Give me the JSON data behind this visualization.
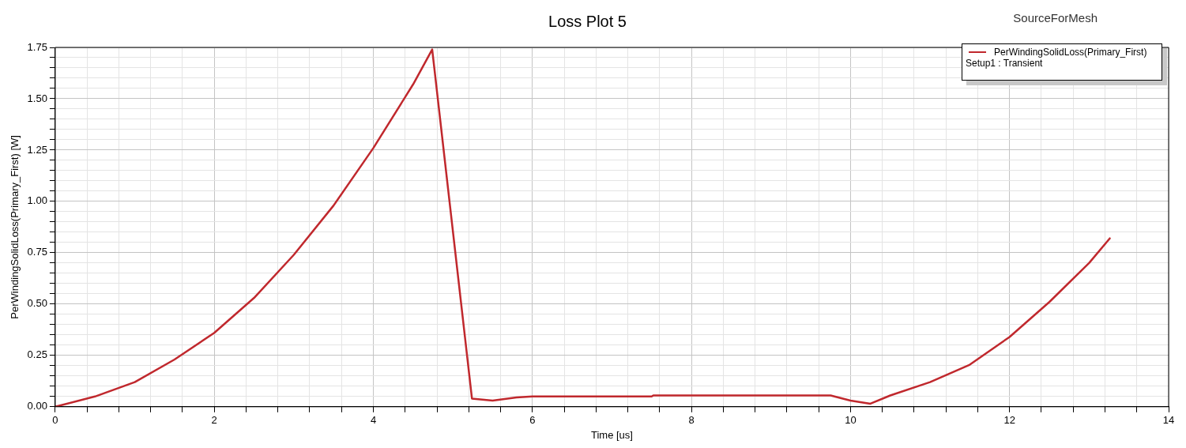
{
  "chart_data": {
    "type": "line",
    "title": "Loss Plot 5",
    "xlabel": "Time [us]",
    "ylabel": "PerWindingSolidLoss(Primary_First) [W]",
    "legend_title": "Setup1 : Transient",
    "annotations": [
      "SourceForMesh"
    ],
    "xlim": [
      0,
      14
    ],
    "ylim": [
      0,
      1.75
    ],
    "xticks": [
      0,
      {
        "value": 0.4,
        "label": null
      },
      {
        "value": 0.8,
        "label": null
      },
      {
        "value": 1.2,
        "label": null
      },
      {
        "value": 1.6,
        "label": null
      },
      2,
      {
        "value": 2.4,
        "label": null
      },
      {
        "value": 2.8,
        "label": null
      },
      {
        "value": 3.2,
        "label": null
      },
      {
        "value": 3.6,
        "label": null
      },
      4,
      {
        "value": 4.4,
        "label": null
      },
      {
        "value": 4.8,
        "label": null
      },
      {
        "value": 5.2,
        "label": null
      },
      {
        "value": 5.6,
        "label": null
      },
      6,
      {
        "value": 6.4,
        "label": null
      },
      {
        "value": 6.8,
        "label": null
      },
      {
        "value": 7.2,
        "label": null
      },
      {
        "value": 7.6,
        "label": null
      },
      8,
      {
        "value": 8.4,
        "label": null
      },
      {
        "value": 8.8,
        "label": null
      },
      {
        "value": 9.2,
        "label": null
      },
      {
        "value": 9.6,
        "label": null
      },
      10,
      {
        "value": 10.4,
        "label": null
      },
      {
        "value": 10.8,
        "label": null
      },
      {
        "value": 11.2,
        "label": null
      },
      {
        "value": 11.6,
        "label": null
      },
      12,
      {
        "value": 12.4,
        "label": null
      },
      {
        "value": 12.8,
        "label": null
      },
      {
        "value": 13.2,
        "label": null
      },
      {
        "value": 13.6,
        "label": null
      },
      14
    ],
    "yticks": [
      {
        "value": 0,
        "label": "0.00"
      },
      {
        "value": 0.05,
        "label": null
      },
      {
        "value": 0.1,
        "label": null
      },
      {
        "value": 0.15,
        "label": null
      },
      {
        "value": 0.2,
        "label": null
      },
      {
        "value": 0.25,
        "label": "0.25"
      },
      {
        "value": 0.3,
        "label": null
      },
      {
        "value": 0.35,
        "label": null
      },
      {
        "value": 0.4,
        "label": null
      },
      {
        "value": 0.45,
        "label": null
      },
      {
        "value": 0.5,
        "label": "0.50"
      },
      {
        "value": 0.55,
        "label": null
      },
      {
        "value": 0.6,
        "label": null
      },
      {
        "value": 0.65,
        "label": null
      },
      {
        "value": 0.7,
        "label": null
      },
      {
        "value": 0.75,
        "label": "0.75"
      },
      {
        "value": 0.8,
        "label": null
      },
      {
        "value": 0.85,
        "label": null
      },
      {
        "value": 0.9,
        "label": null
      },
      {
        "value": 0.95,
        "label": null
      },
      {
        "value": 1,
        "label": "1.00"
      },
      {
        "value": 1.05,
        "label": null
      },
      {
        "value": 1.1,
        "label": null
      },
      {
        "value": 1.15,
        "label": null
      },
      {
        "value": 1.2,
        "label": null
      },
      {
        "value": 1.25,
        "label": "1.25"
      },
      {
        "value": 1.3,
        "label": null
      },
      {
        "value": 1.35,
        "label": null
      },
      {
        "value": 1.4,
        "label": null
      },
      {
        "value": 1.45,
        "label": null
      },
      {
        "value": 1.5,
        "label": "1.50"
      },
      {
        "value": 1.55,
        "label": null
      },
      {
        "value": 1.6,
        "label": null
      },
      {
        "value": 1.65,
        "label": null
      },
      {
        "value": 1.7,
        "label": null
      },
      {
        "value": 1.75,
        "label": "1.75"
      }
    ],
    "grid": true,
    "legend": "top right",
    "marker": "none",
    "line_style": "solid",
    "series": [
      {
        "name": "PerWindingSolidLoss(Primary_First)",
        "color": "#c0282d",
        "x": [
          0,
          0.5,
          1,
          1.5,
          2,
          2.5,
          3,
          3.5,
          4,
          4.5,
          4.74,
          5.24,
          5.5,
          5.8,
          6,
          7.5,
          7.52,
          9.75,
          10,
          10.25,
          10.5,
          11,
          11.5,
          12,
          12.5,
          13,
          13.26
        ],
        "values": [
          0,
          0.05,
          0.12,
          0.23,
          0.36,
          0.53,
          0.74,
          0.98,
          1.26,
          1.57,
          1.74,
          0.04,
          0.03,
          0.045,
          0.05,
          0.05,
          0.055,
          0.055,
          0.03,
          0.015,
          0.055,
          0.12,
          0.205,
          0.34,
          0.51,
          0.7,
          0.82
        ]
      }
    ]
  }
}
